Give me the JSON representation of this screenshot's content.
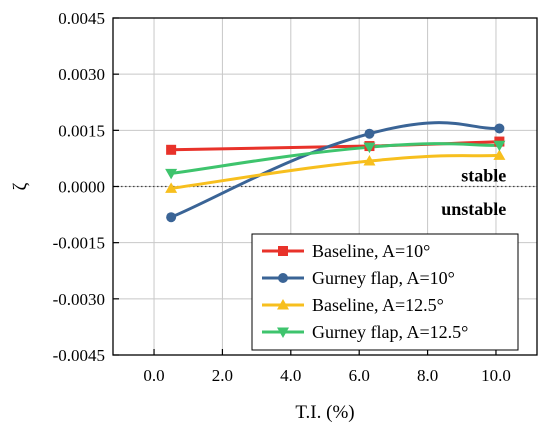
{
  "chart_data": {
    "type": "line",
    "title": "",
    "xlabel": "T.I. (%)",
    "ylabel": "ζ",
    "xlim": [
      -1.2,
      11.2
    ],
    "ylim": [
      -0.0045,
      0.0045
    ],
    "xticks": [
      0.0,
      2.0,
      4.0,
      6.0,
      8.0,
      10.0
    ],
    "xtick_labels": [
      "0.0",
      "2.0",
      "4.0",
      "6.0",
      "8.0",
      "10.0"
    ],
    "yticks": [
      0.0045,
      0.003,
      0.0015,
      0.0,
      -0.0015,
      -0.003,
      -0.0045
    ],
    "ytick_labels": [
      "0.0045",
      "0.0030",
      "0.0015",
      "0.0000",
      "-0.0015",
      "-0.0030",
      "-0.0045"
    ],
    "grid": true,
    "legend_position": "bottom-right",
    "reference_line": {
      "y": 0.0,
      "style": "dotted"
    },
    "annotations": [
      {
        "text": "stable",
        "x": 10.3,
        "y": 0.0003
      },
      {
        "text": "unstable",
        "x": 10.3,
        "y": -0.0006
      }
    ],
    "series": [
      {
        "name": "Baseline, A=10°",
        "color": "#e8322a",
        "marker": "square",
        "x": [
          0.5,
          6.3,
          10.1
        ],
        "y": [
          0.00098,
          0.00108,
          0.0012
        ]
      },
      {
        "name": "Gurney flap, A=10°",
        "color": "#3a6496",
        "marker": "circle",
        "x": [
          0.5,
          6.3,
          10.1
        ],
        "y": [
          -0.00082,
          0.00141,
          0.00155
        ]
      },
      {
        "name": "Baseline, A=12.5°",
        "color": "#f7bf1e",
        "marker": "triangle-up",
        "x": [
          0.5,
          6.3,
          10.1
        ],
        "y": [
          -5e-05,
          0.00068,
          0.00083
        ]
      },
      {
        "name": "Gurney flap, A=12.5°",
        "color": "#3ec46d",
        "marker": "triangle-down",
        "x": [
          0.5,
          6.3,
          10.1
        ],
        "y": [
          0.00035,
          0.00105,
          0.0011
        ]
      }
    ]
  }
}
